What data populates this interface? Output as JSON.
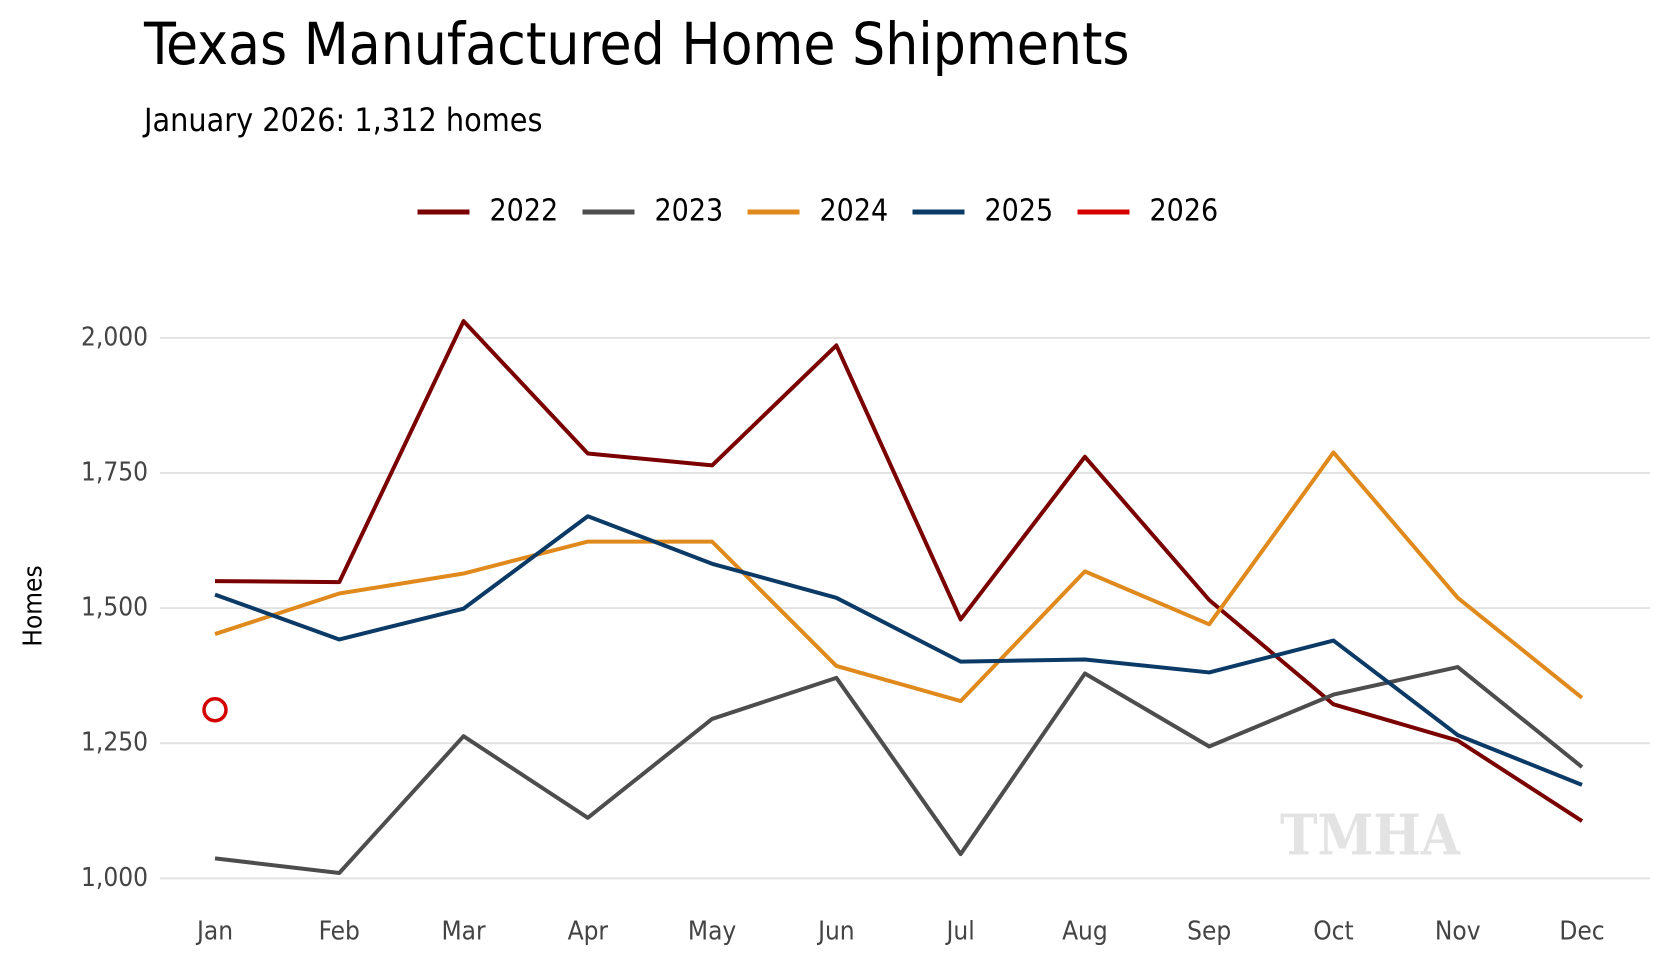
{
  "chart_data": {
    "type": "line",
    "title": "Texas Manufactured Home Shipments",
    "subtitle": "January 2026: 1,312 homes",
    "y_label": "Homes",
    "watermark": "TMHA",
    "categories": [
      "Jan",
      "Feb",
      "Mar",
      "Apr",
      "May",
      "Jun",
      "Jul",
      "Aug",
      "Sep",
      "Oct",
      "Nov",
      "Dec"
    ],
    "series": [
      {
        "name": "2022",
        "color": "#7a0000",
        "values": [
          1550,
          1548,
          2031,
          1786,
          1764,
          1986,
          1479,
          1780,
          1515,
          1322,
          1255,
          1106
        ]
      },
      {
        "name": "2023",
        "color": "#4d4d4d",
        "values": [
          1037,
          1010,
          1263,
          1112,
          1295,
          1371,
          1045,
          1379,
          1244,
          1340,
          1391,
          1206
        ]
      },
      {
        "name": "2024",
        "color": "#e08a1e",
        "values": [
          1452,
          1527,
          1564,
          1623,
          1623,
          1393,
          1328,
          1568,
          1470,
          1788,
          1519,
          1334
        ]
      },
      {
        "name": "2025",
        "color": "#0b3a66",
        "values": [
          1525,
          1442,
          1499,
          1670,
          1582,
          1519,
          1401,
          1405,
          1381,
          1440,
          1265,
          1173
        ]
      },
      {
        "name": "2026",
        "color": "#d40000",
        "values": [
          1312,
          null,
          null,
          null,
          null,
          null,
          null,
          null,
          null,
          null,
          null,
          null
        ]
      }
    ],
    "ylim": [
      960,
      2070
    ],
    "yticks": [
      {
        "value": 1000,
        "label": "1,000"
      },
      {
        "value": 1250,
        "label": "1,250"
      },
      {
        "value": 1500,
        "label": "1,500"
      },
      {
        "value": 1750,
        "label": "1,750"
      },
      {
        "value": 2000,
        "label": "2,000"
      }
    ],
    "grid": true,
    "legend": "top"
  }
}
